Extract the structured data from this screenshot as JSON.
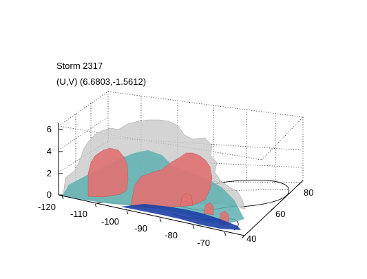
{
  "chart_data": {
    "type": "surface3d",
    "title": "Storm 2317",
    "subtitle": "(U,V) (6.6803,-1.5612)",
    "x_ticks": [
      "-120",
      "-110",
      "-100",
      "-90",
      "-80",
      "-70"
    ],
    "y_ticks": [
      "40",
      "60",
      "80"
    ],
    "z_ticks": [
      "0",
      "2",
      "4",
      "6"
    ],
    "xlim": [
      -120,
      -65
    ],
    "ylim": [
      35,
      85
    ],
    "zlim": [
      0,
      6.5
    ],
    "grid": true,
    "surface_colors": {
      "outer": "#c8c8c8",
      "inner": "#e07373",
      "mid": "#5fb0b0",
      "base": "#1d3fa6"
    }
  }
}
